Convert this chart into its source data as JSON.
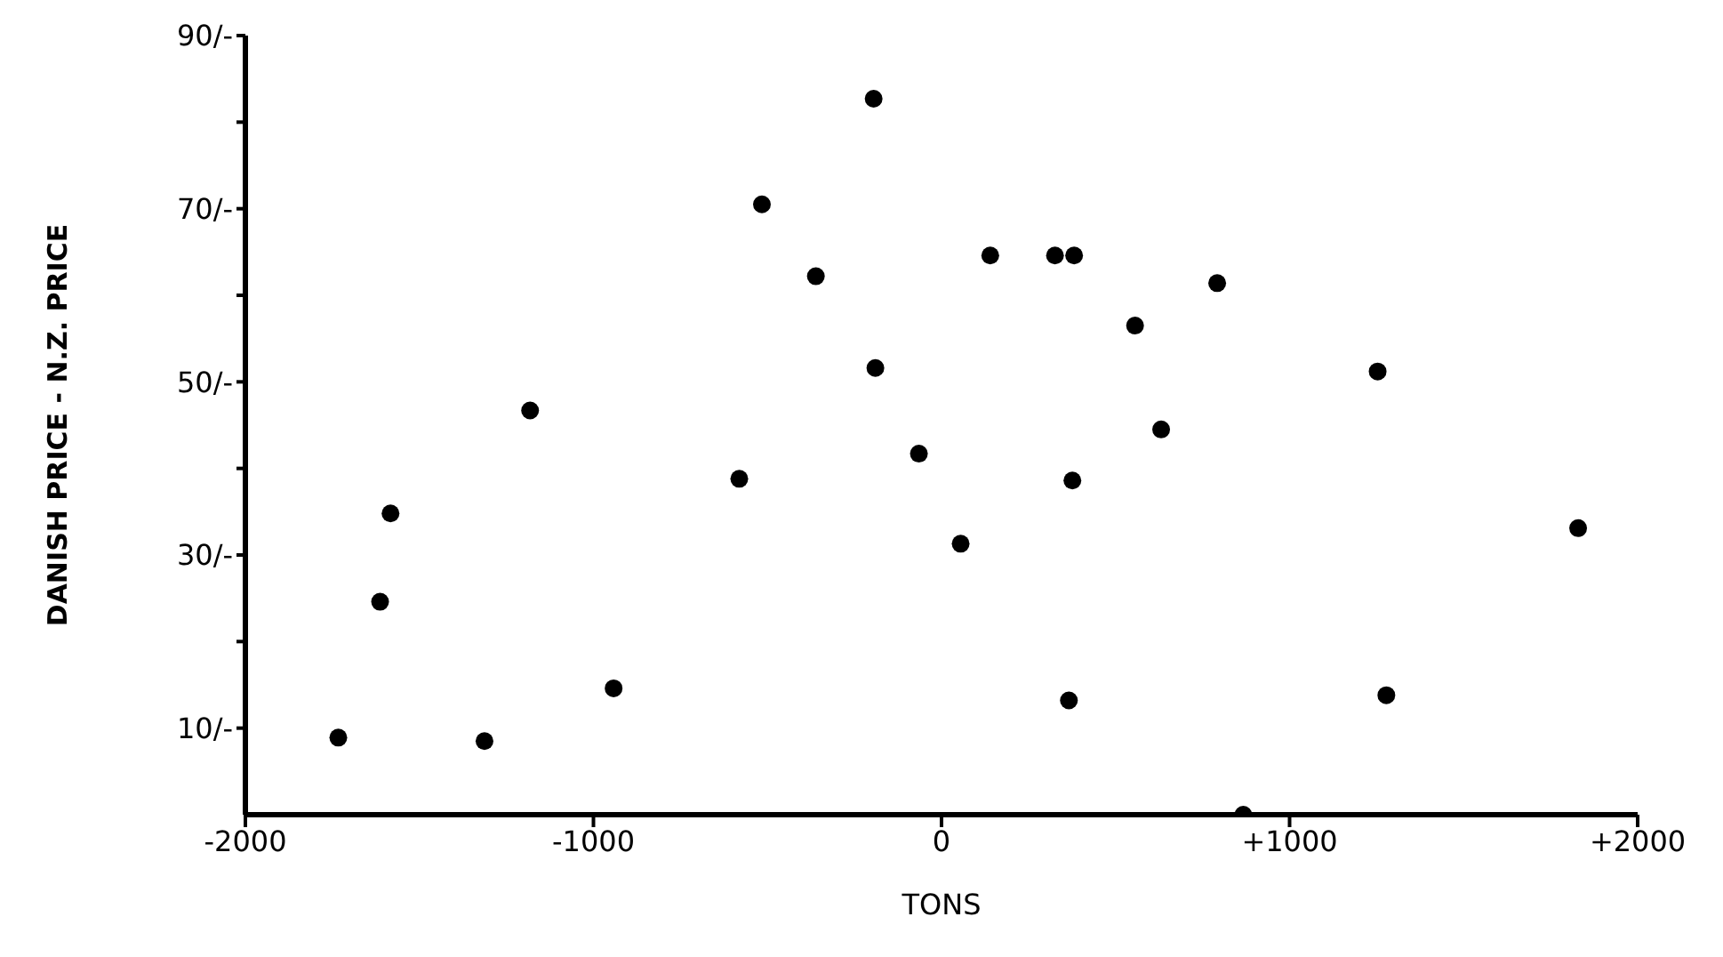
{
  "chart_data": {
    "type": "scatter",
    "xlabel": "TONS",
    "ylabel": "DANISH PRICE - N.Z. PRICE",
    "x": [
      -1733,
      -1613,
      -1583,
      -1313,
      -1182,
      -942,
      -581,
      -516,
      -361,
      -195,
      -190,
      -65,
      55,
      140,
      326,
      381,
      376,
      366,
      792,
      556,
      631,
      1253,
      1278,
      1829,
      867
    ],
    "values": [
      8.9,
      24.6,
      34.8,
      8.5,
      46.7,
      14.6,
      38.8,
      70.5,
      62.2,
      82.7,
      51.6,
      41.7,
      31.3,
      64.6,
      64.6,
      64.6,
      38.6,
      13.2,
      61.4,
      56.5,
      44.5,
      51.2,
      13.8,
      33.1,
      0
    ],
    "color": "#000000",
    "marker": "circle",
    "xlim": [
      -2000,
      2000
    ],
    "xticks": [
      -2000,
      -1000,
      0,
      {
        "value": 1000,
        "label": "+1000"
      },
      {
        "value": 2000,
        "label": "+2000"
      }
    ],
    "ylim": [
      0,
      90
    ],
    "yticks": [
      {
        "value": 10,
        "label": "10/-"
      },
      {
        "value": 20,
        "label": null
      },
      {
        "value": 30,
        "label": "30/-"
      },
      {
        "value": 40,
        "label": null
      },
      {
        "value": 50,
        "label": "50/-"
      },
      {
        "value": 60,
        "label": null
      },
      {
        "value": 70,
        "label": "70/-"
      },
      {
        "value": 80,
        "label": null
      },
      {
        "value": 90,
        "label": "90/-"
      }
    ],
    "grid": false,
    "legend": false
  }
}
